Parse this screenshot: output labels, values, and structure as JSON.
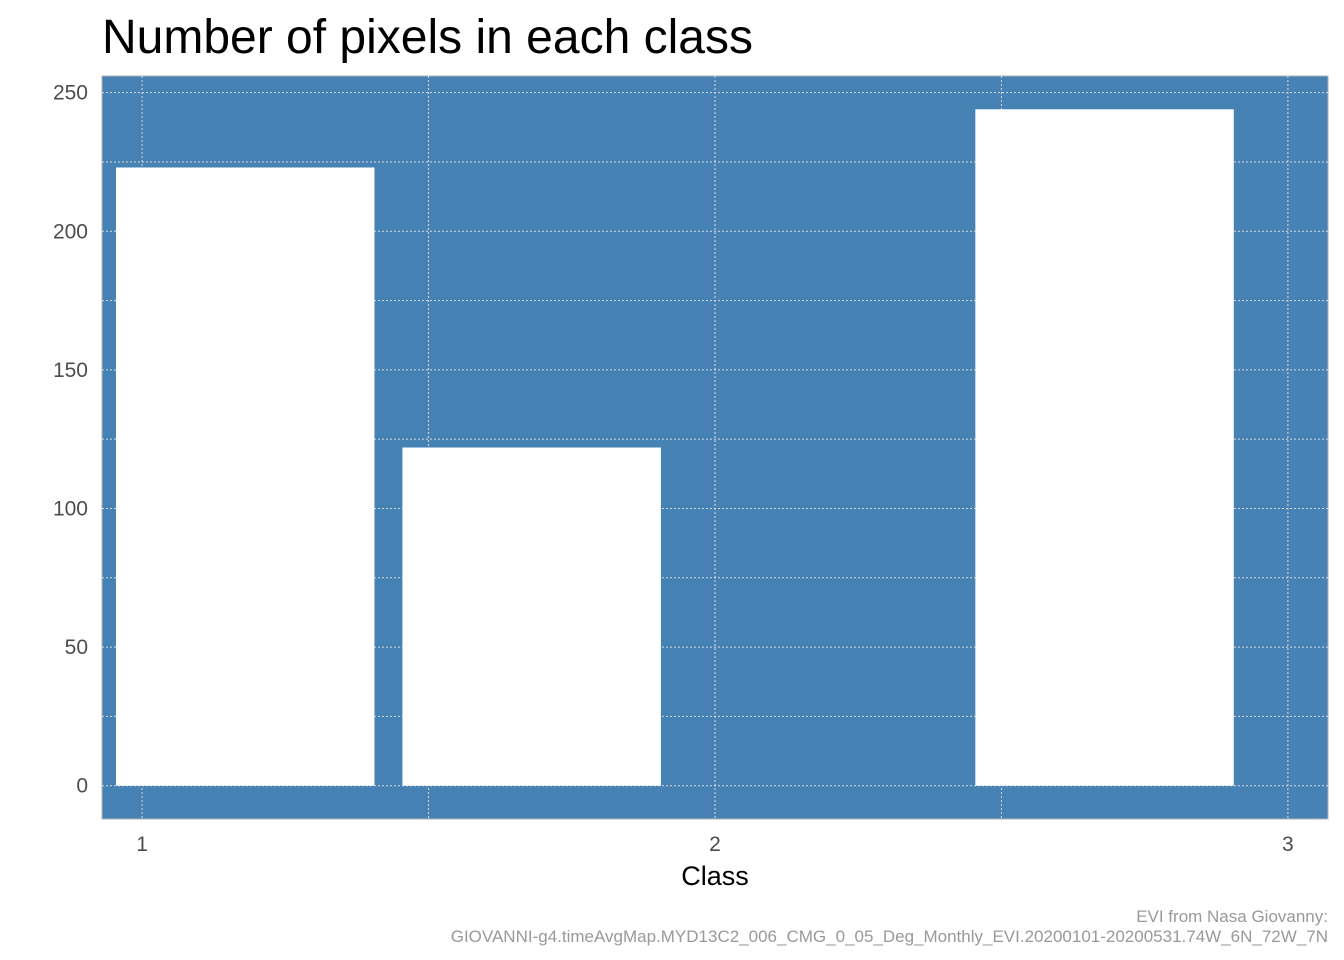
{
  "chart_data": {
    "type": "histogram",
    "title": "Number of pixels in each class",
    "xlabel": "Class",
    "ylabel": "",
    "bins": [
      {
        "from": 0.93,
        "to": 1.43,
        "count": 223
      },
      {
        "from": 1.43,
        "to": 1.93,
        "count": 122
      },
      {
        "from": 1.93,
        "to": 2.43,
        "count": 0
      },
      {
        "from": 2.43,
        "to": 2.93,
        "count": 244
      }
    ],
    "x_ticks": [
      "1",
      "2",
      "3"
    ],
    "x_tick_values": [
      1,
      2,
      3
    ],
    "y_ticks": [
      "0",
      "50",
      "100",
      "150",
      "200",
      "250"
    ],
    "y_tick_values": [
      0,
      50,
      100,
      150,
      200,
      250
    ],
    "xlim": [
      0.93,
      3.07
    ],
    "ylim": [
      -12,
      256
    ],
    "grid": true,
    "colors": {
      "panel": "#4682b4",
      "bars": "#ffffff",
      "grid": "#d9d9d9"
    },
    "caption_lines": [
      "EVI from Nasa Giovanny:",
      "GIOVANNI-g4.timeAvgMap.MYD13C2_006_CMG_0_05_Deg_Monthly_EVI.20200101-20200531.74W_6N_72W_7N"
    ]
  }
}
